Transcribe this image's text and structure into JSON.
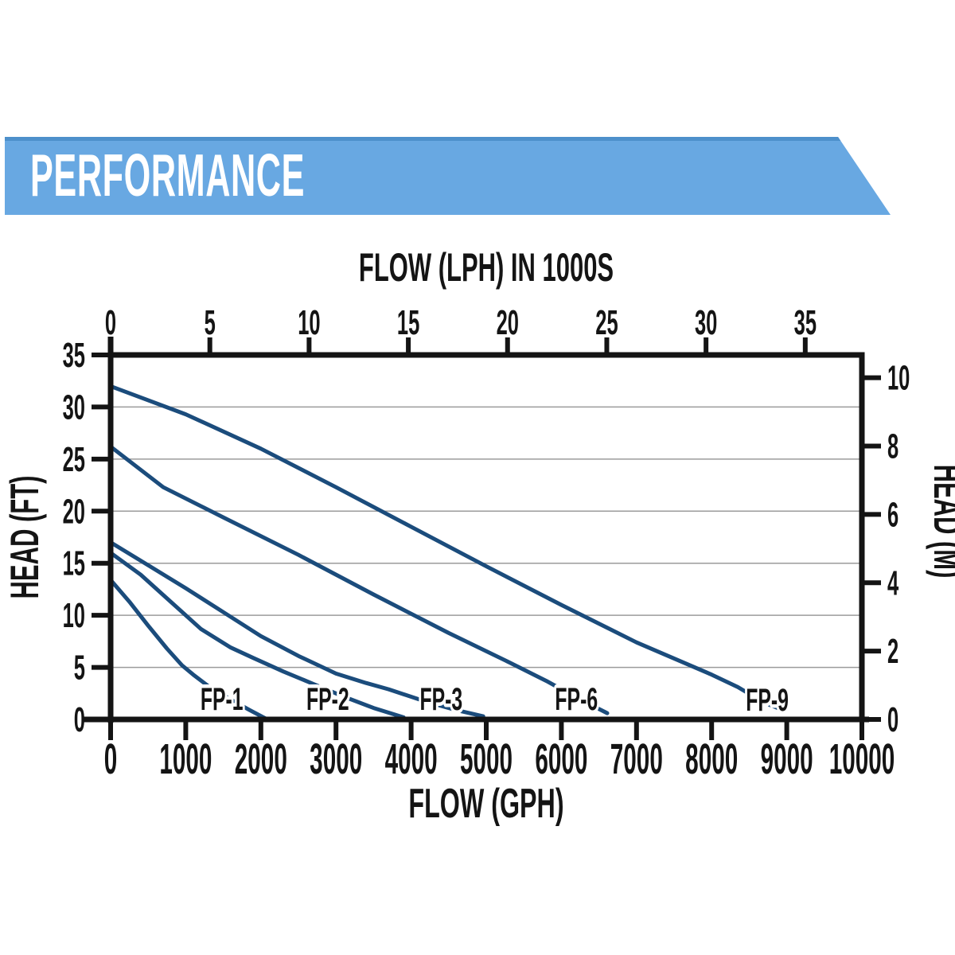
{
  "banner": {
    "title": "PERFORMANCE",
    "background": "#68a8e2",
    "top_edge": "#4d90cb",
    "text_color": "#ffffff"
  },
  "chart_data": {
    "type": "line",
    "title": "PERFORMANCE",
    "grid": "horizontal-only",
    "legend": "inline-curve-labels",
    "line_color": "#1b4c7c",
    "grid_color": "#9b9b9b",
    "axis_color": "#141414",
    "plot_bg": "#ffffff",
    "x_bottom": {
      "label": "FLOW (GPH)",
      "min": 0,
      "max": 10000,
      "ticks": [
        0,
        1000,
        2000,
        3000,
        4000,
        5000,
        6000,
        7000,
        8000,
        9000,
        10000
      ]
    },
    "x_top": {
      "label": "FLOW (LPH) IN 1000S",
      "min": 0,
      "max": 37.85,
      "ticks": [
        0,
        5,
        10,
        15,
        20,
        25,
        30,
        35
      ],
      "lph_per_gph": 3.7854
    },
    "y_left": {
      "label": "HEAD (FT)",
      "min": 0,
      "max": 35,
      "ticks": [
        0,
        5,
        10,
        15,
        20,
        25,
        30,
        35
      ]
    },
    "y_right": {
      "label": "HEAD (M)",
      "min": 0,
      "max": 10.67,
      "ticks": [
        0,
        2,
        4,
        6,
        8,
        10
      ],
      "ft_per_m": 3.28084
    },
    "gridlines_ft": [
      5,
      10,
      15,
      20,
      25,
      30
    ],
    "series": [
      {
        "name": "FP-1",
        "label_at": [
          1480,
          2.0
        ],
        "points": [
          [
            0,
            13.4
          ],
          [
            250,
            11.3
          ],
          [
            500,
            9.0
          ],
          [
            750,
            6.8
          ],
          [
            950,
            5.2
          ],
          [
            1100,
            4.3
          ],
          [
            1300,
            3.2
          ],
          [
            1600,
            1.9
          ],
          [
            1850,
            0.9
          ],
          [
            2060,
            0.1
          ]
        ]
      },
      {
        "name": "FP-2",
        "label_at": [
          2890,
          2.0
        ],
        "points": [
          [
            0,
            16.0
          ],
          [
            400,
            13.9
          ],
          [
            800,
            11.3
          ],
          [
            1200,
            8.7
          ],
          [
            1600,
            6.9
          ],
          [
            1900,
            5.9
          ],
          [
            2300,
            4.6
          ],
          [
            2700,
            3.4
          ],
          [
            3100,
            2.2
          ],
          [
            3500,
            1.1
          ],
          [
            3900,
            0.2
          ]
        ]
      },
      {
        "name": "FP-3",
        "label_at": [
          4400,
          2.0
        ],
        "points": [
          [
            0,
            17.0
          ],
          [
            500,
            14.8
          ],
          [
            1000,
            12.6
          ],
          [
            1500,
            10.3
          ],
          [
            2000,
            8.0
          ],
          [
            2500,
            6.1
          ],
          [
            3000,
            4.4
          ],
          [
            3400,
            3.5
          ],
          [
            3700,
            2.9
          ],
          [
            4200,
            1.7
          ],
          [
            4600,
            0.9
          ],
          [
            4960,
            0.3
          ]
        ]
      },
      {
        "name": "FP-6",
        "label_at": [
          6200,
          2.0
        ],
        "points": [
          [
            0,
            26.2
          ],
          [
            700,
            22.3
          ],
          [
            1500,
            19.4
          ],
          [
            2500,
            15.8
          ],
          [
            3500,
            12.0
          ],
          [
            4500,
            8.3
          ],
          [
            5300,
            5.5
          ],
          [
            5800,
            3.7
          ],
          [
            6200,
            2.1
          ],
          [
            6610,
            0.6
          ]
        ]
      },
      {
        "name": "FP-9",
        "label_at": [
          8740,
          1.9
        ],
        "points": [
          [
            0,
            32.0
          ],
          [
            1000,
            29.3
          ],
          [
            2000,
            26.0
          ],
          [
            3000,
            22.3
          ],
          [
            4000,
            18.5
          ],
          [
            5000,
            14.7
          ],
          [
            6000,
            11.0
          ],
          [
            7000,
            7.4
          ],
          [
            8000,
            4.3
          ],
          [
            8350,
            3.1
          ],
          [
            8700,
            1.6
          ],
          [
            8950,
            0.9
          ]
        ]
      }
    ]
  }
}
